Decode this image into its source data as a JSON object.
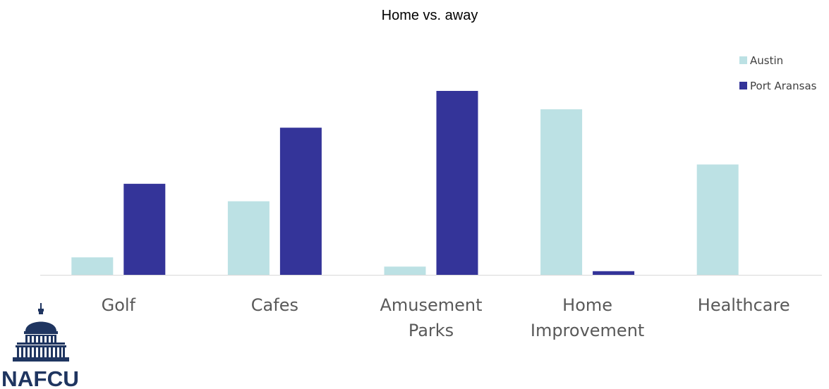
{
  "chart_data": {
    "type": "bar",
    "title": "Home vs. away",
    "categories": [
      [
        "Golf"
      ],
      [
        "Cafes"
      ],
      [
        "Amusement",
        "Parks"
      ],
      [
        "Home",
        "Improvement"
      ],
      [
        "Healthcare"
      ]
    ],
    "series": [
      {
        "name": "Austin",
        "color": "#bce1e4",
        "values": [
          9.5,
          40,
          4.5,
          90,
          60
        ]
      },
      {
        "name": "Port Aransas",
        "color": "#343499",
        "values": [
          49.5,
          80,
          100,
          2,
          0
        ]
      }
    ],
    "ylim": [
      0,
      100
    ],
    "grid": false,
    "yaxis_visible": false,
    "legend_position": "top-right"
  },
  "logo": {
    "name": "NAFCU-logo",
    "text": "NAFCU",
    "color": "#1f3560"
  }
}
